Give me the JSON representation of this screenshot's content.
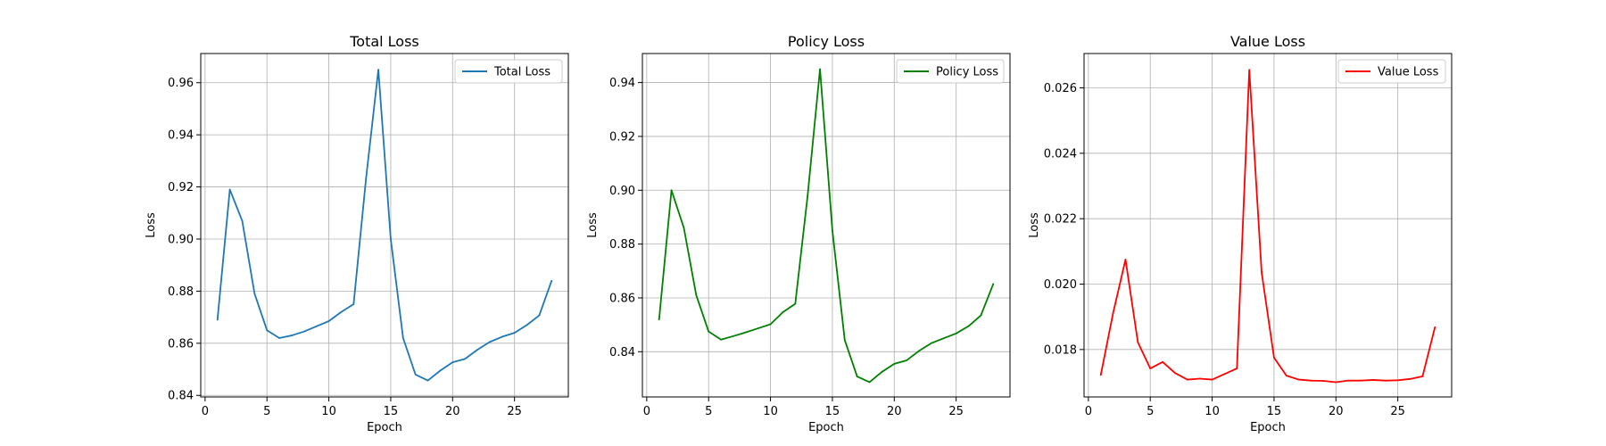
{
  "chart_data": [
    {
      "type": "line",
      "title": "Total Loss",
      "xlabel": "Epoch",
      "ylabel": "Loss",
      "xlim": [
        -0.35,
        29.35
      ],
      "ylim": [
        0.8394,
        0.9712
      ],
      "xticks": [
        0,
        5,
        10,
        15,
        20,
        25
      ],
      "yticks": [
        0.84,
        0.86,
        0.88,
        0.9,
        0.92,
        0.94,
        0.96
      ],
      "tick_decimals": 2,
      "grid": true,
      "legend_position": "top-right",
      "x": [
        1,
        2,
        3,
        4,
        5,
        6,
        7,
        8,
        9,
        10,
        11,
        12,
        13,
        14,
        15,
        16,
        17,
        18,
        19,
        20,
        21,
        22,
        23,
        24,
        25,
        26,
        27,
        28
      ],
      "series": [
        {
          "name": "Total Loss",
          "color": "#1f77b4",
          "values": [
            0.869,
            0.919,
            0.907,
            0.879,
            0.865,
            0.862,
            0.863,
            0.8645,
            0.8665,
            0.8685,
            0.872,
            0.875,
            0.923,
            0.965,
            0.9,
            0.862,
            0.848,
            0.8457,
            0.8495,
            0.8527,
            0.854,
            0.8575,
            0.8605,
            0.8625,
            0.864,
            0.867,
            0.8707,
            0.884
          ]
        }
      ]
    },
    {
      "type": "line",
      "title": "Policy Loss",
      "xlabel": "Epoch",
      "ylabel": "Loss",
      "xlim": [
        -0.35,
        29.35
      ],
      "ylim": [
        0.8232,
        0.9508
      ],
      "xticks": [
        0,
        5,
        10,
        15,
        20,
        25
      ],
      "yticks": [
        0.84,
        0.86,
        0.88,
        0.9,
        0.92,
        0.94
      ],
      "tick_decimals": 2,
      "grid": true,
      "legend_position": "top-right",
      "x": [
        1,
        2,
        3,
        4,
        5,
        6,
        7,
        8,
        9,
        10,
        11,
        12,
        13,
        14,
        15,
        16,
        17,
        18,
        19,
        20,
        21,
        22,
        23,
        24,
        25,
        26,
        27,
        28
      ],
      "series": [
        {
          "name": "Policy Loss",
          "color": "#008000",
          "values": [
            0.852,
            0.9,
            0.886,
            0.861,
            0.8475,
            0.8445,
            0.8458,
            0.8472,
            0.8487,
            0.8502,
            0.8547,
            0.8578,
            0.898,
            0.945,
            0.885,
            0.8443,
            0.8308,
            0.8287,
            0.8325,
            0.8355,
            0.8368,
            0.8403,
            0.8432,
            0.845,
            0.8468,
            0.8495,
            0.8535,
            0.8652
          ]
        }
      ]
    },
    {
      "type": "line",
      "title": "Value Loss",
      "xlabel": "Epoch",
      "ylabel": "Loss",
      "xlim": [
        -0.35,
        29.35
      ],
      "ylim": [
        0.01655,
        0.02705
      ],
      "xticks": [
        0,
        5,
        10,
        15,
        20,
        25
      ],
      "yticks": [
        0.018,
        0.02,
        0.022,
        0.024,
        0.026
      ],
      "tick_decimals": 3,
      "grid": true,
      "legend_position": "top-right",
      "x": [
        1,
        2,
        3,
        4,
        5,
        6,
        7,
        8,
        9,
        10,
        11,
        12,
        13,
        14,
        15,
        16,
        17,
        18,
        19,
        20,
        21,
        22,
        23,
        24,
        25,
        26,
        27,
        28
      ],
      "series": [
        {
          "name": "Value Loss",
          "color": "#ff0000",
          "values": [
            0.01722,
            0.01912,
            0.02075,
            0.01822,
            0.01742,
            0.01762,
            0.01728,
            0.01708,
            0.01711,
            0.01708,
            0.01725,
            0.01742,
            0.02655,
            0.02035,
            0.01775,
            0.0172,
            0.01708,
            0.01705,
            0.01704,
            0.017,
            0.01705,
            0.01705,
            0.01707,
            0.01705,
            0.01706,
            0.0171,
            0.01718,
            0.01868
          ]
        }
      ]
    }
  ]
}
